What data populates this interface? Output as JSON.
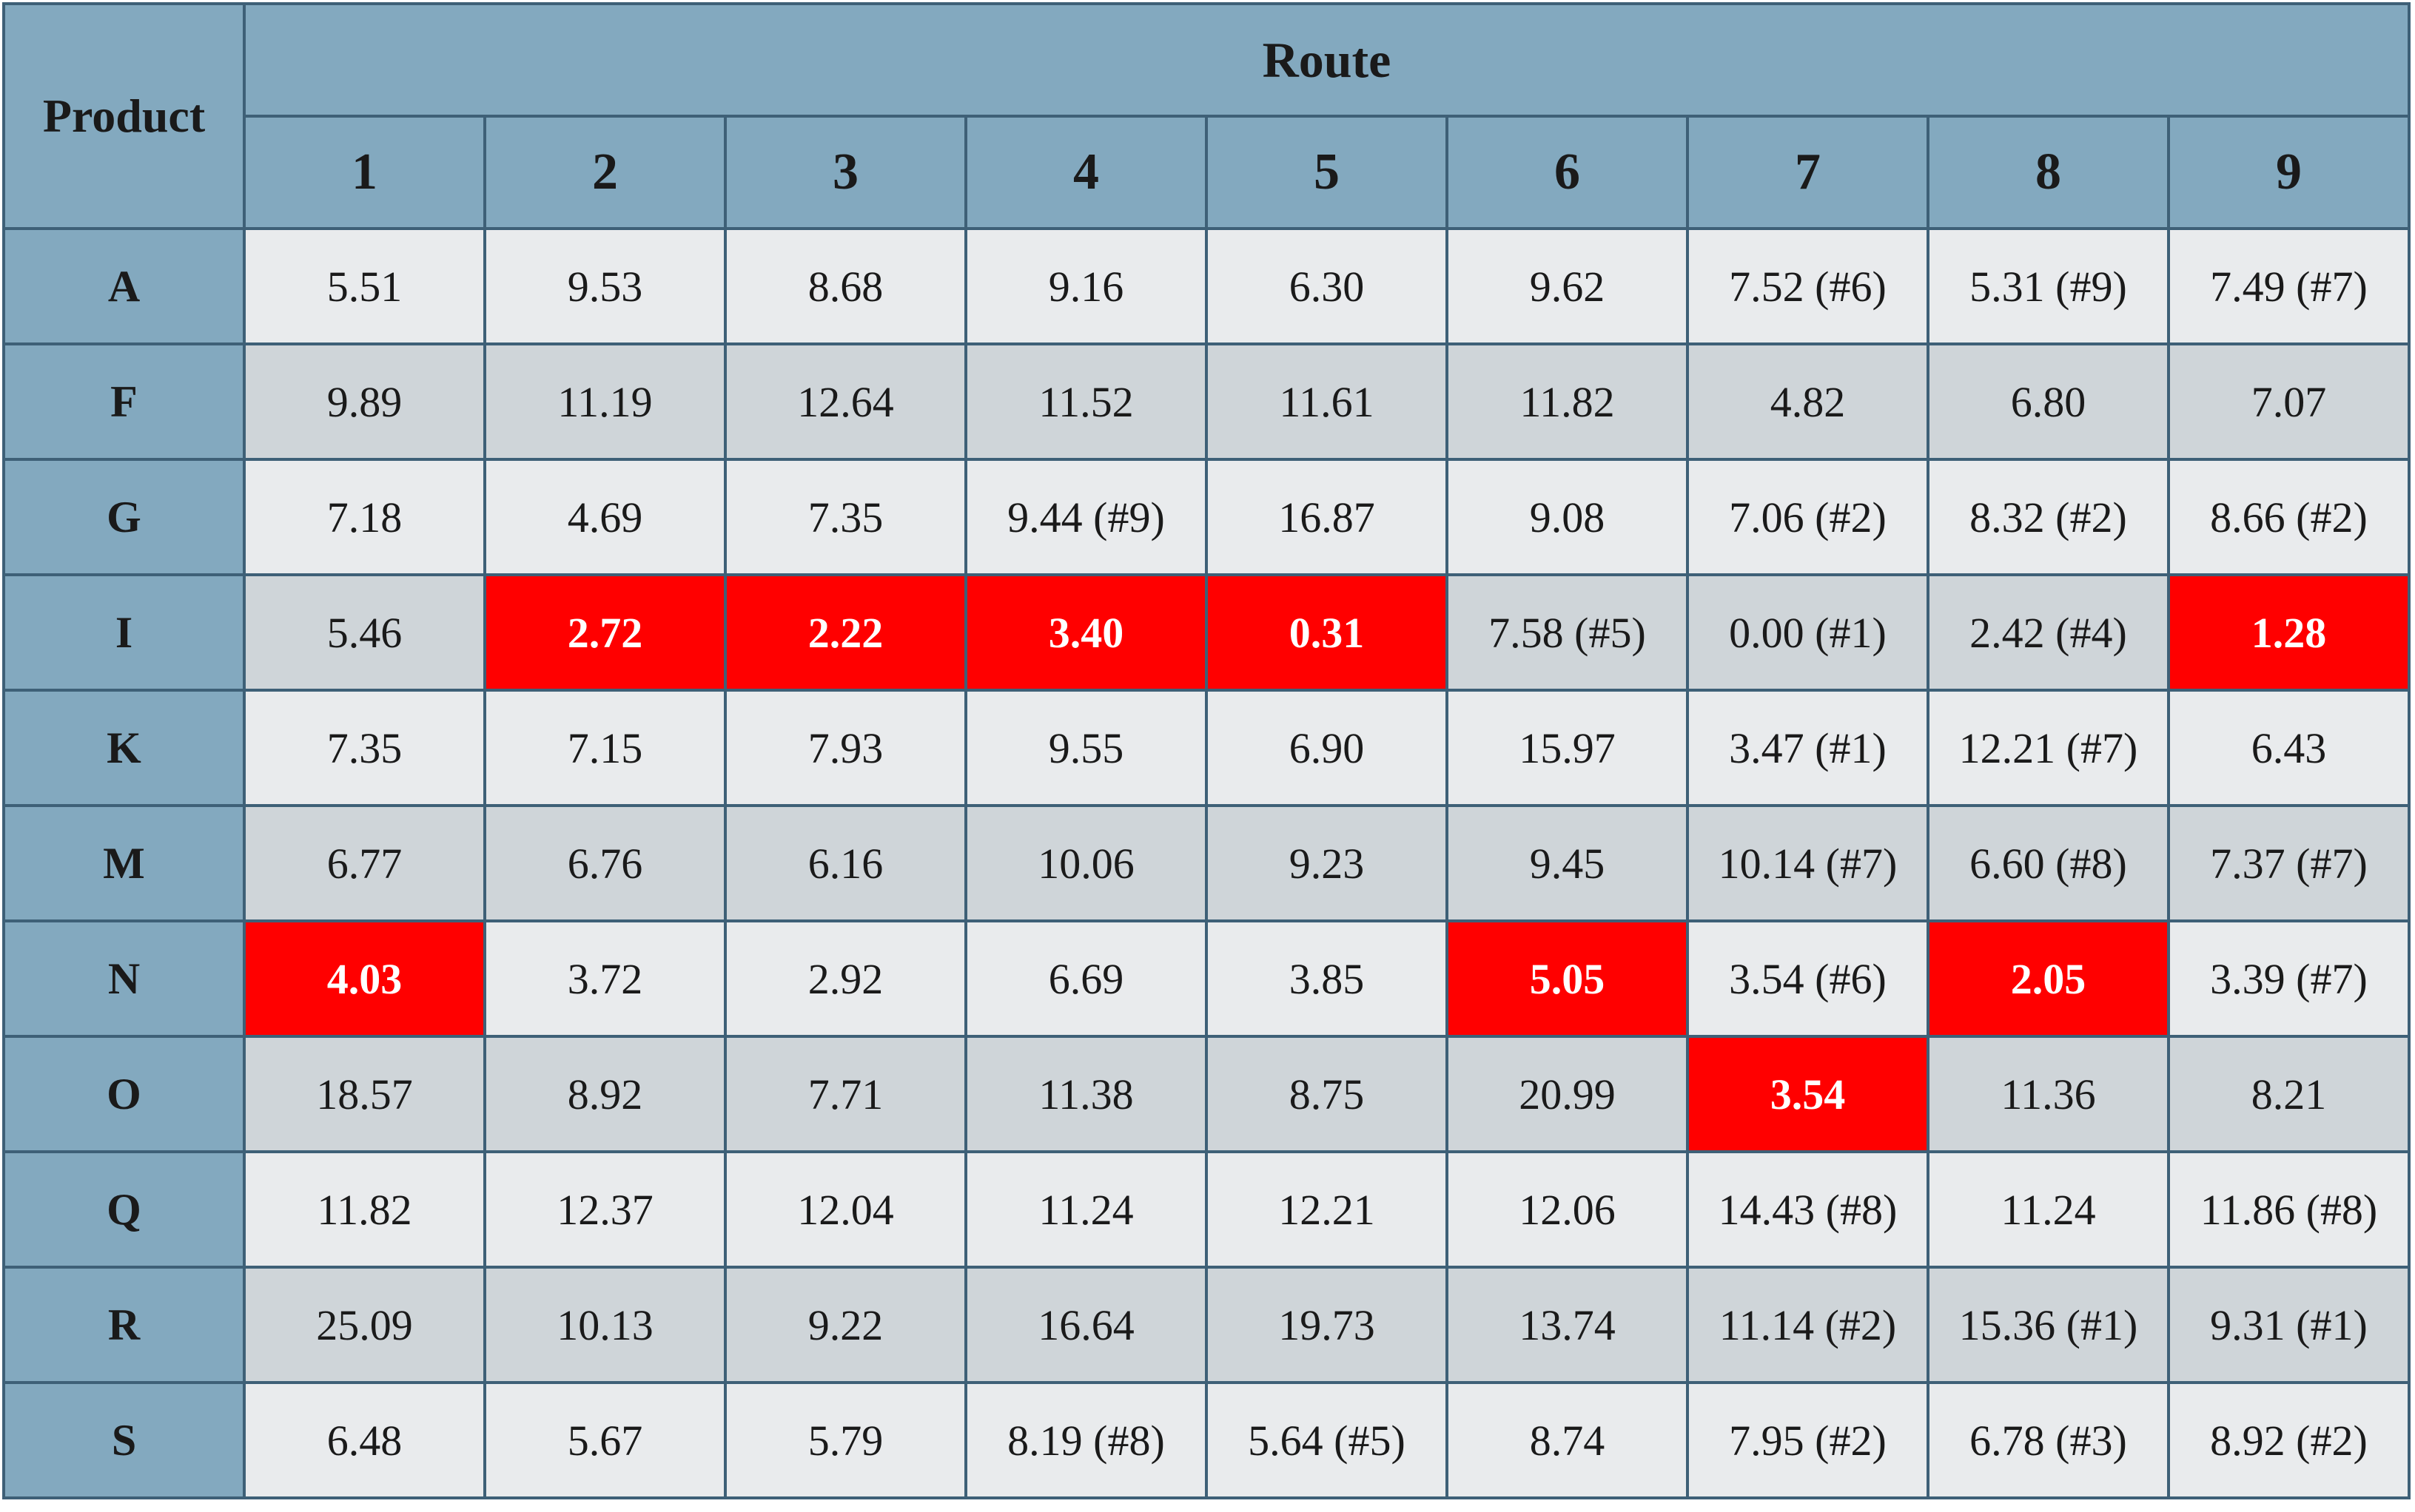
{
  "table": {
    "product_header": "Product",
    "route_header": "Route",
    "routes": [
      "1",
      "2",
      "3",
      "4",
      "5",
      "6",
      "7",
      "8",
      "9"
    ],
    "highlight_color": "#ff0000",
    "header_color": "#83a9bf",
    "rows": [
      {
        "product": "A",
        "cells": [
          {
            "text": "5.51"
          },
          {
            "text": "9.53"
          },
          {
            "text": "8.68"
          },
          {
            "text": "9.16"
          },
          {
            "text": "6.30"
          },
          {
            "text": "9.62"
          },
          {
            "text": "7.52 (#6)"
          },
          {
            "text": "5.31 (#9)"
          },
          {
            "text": "7.49 (#7)"
          }
        ]
      },
      {
        "product": "F",
        "cells": [
          {
            "text": "9.89"
          },
          {
            "text": "11.19"
          },
          {
            "text": "12.64"
          },
          {
            "text": "11.52"
          },
          {
            "text": "11.61"
          },
          {
            "text": "11.82"
          },
          {
            "text": "4.82"
          },
          {
            "text": "6.80"
          },
          {
            "text": "7.07"
          }
        ]
      },
      {
        "product": "G",
        "cells": [
          {
            "text": "7.18"
          },
          {
            "text": "4.69"
          },
          {
            "text": "7.35"
          },
          {
            "text": "9.44 (#9)"
          },
          {
            "text": "16.87"
          },
          {
            "text": "9.08"
          },
          {
            "text": "7.06 (#2)"
          },
          {
            "text": "8.32 (#2)"
          },
          {
            "text": "8.66 (#2)"
          }
        ]
      },
      {
        "product": "I",
        "cells": [
          {
            "text": "5.46"
          },
          {
            "text": "2.72",
            "highlight": true
          },
          {
            "text": "2.22",
            "highlight": true
          },
          {
            "text": "3.40",
            "highlight": true
          },
          {
            "text": "0.31",
            "highlight": true
          },
          {
            "text": "7.58 (#5)"
          },
          {
            "text": "0.00 (#1)"
          },
          {
            "text": "2.42 (#4)"
          },
          {
            "text": "1.28",
            "highlight": true
          }
        ]
      },
      {
        "product": "K",
        "cells": [
          {
            "text": "7.35"
          },
          {
            "text": "7.15"
          },
          {
            "text": "7.93"
          },
          {
            "text": "9.55"
          },
          {
            "text": "6.90"
          },
          {
            "text": "15.97"
          },
          {
            "text": "3.47 (#1)"
          },
          {
            "text": "12.21 (#7)"
          },
          {
            "text": "6.43"
          }
        ]
      },
      {
        "product": "M",
        "cells": [
          {
            "text": "6.77"
          },
          {
            "text": "6.76"
          },
          {
            "text": "6.16"
          },
          {
            "text": "10.06"
          },
          {
            "text": "9.23"
          },
          {
            "text": "9.45"
          },
          {
            "text": "10.14 (#7)"
          },
          {
            "text": "6.60 (#8)"
          },
          {
            "text": "7.37 (#7)"
          }
        ]
      },
      {
        "product": "N",
        "cells": [
          {
            "text": "4.03",
            "highlight": true
          },
          {
            "text": "3.72"
          },
          {
            "text": "2.92"
          },
          {
            "text": "6.69"
          },
          {
            "text": "3.85"
          },
          {
            "text": "5.05",
            "highlight": true
          },
          {
            "text": "3.54 (#6)"
          },
          {
            "text": "2.05",
            "highlight": true
          },
          {
            "text": "3.39 (#7)"
          }
        ]
      },
      {
        "product": "O",
        "cells": [
          {
            "text": "18.57"
          },
          {
            "text": "8.92"
          },
          {
            "text": "7.71"
          },
          {
            "text": "11.38"
          },
          {
            "text": "8.75"
          },
          {
            "text": "20.99"
          },
          {
            "text": "3.54",
            "highlight": true
          },
          {
            "text": "11.36"
          },
          {
            "text": "8.21"
          }
        ]
      },
      {
        "product": "Q",
        "cells": [
          {
            "text": "11.82"
          },
          {
            "text": "12.37"
          },
          {
            "text": "12.04"
          },
          {
            "text": "11.24"
          },
          {
            "text": "12.21"
          },
          {
            "text": "12.06"
          },
          {
            "text": "14.43 (#8)"
          },
          {
            "text": "11.24"
          },
          {
            "text": "11.86 (#8)"
          }
        ]
      },
      {
        "product": "R",
        "cells": [
          {
            "text": "25.09"
          },
          {
            "text": "10.13"
          },
          {
            "text": "9.22"
          },
          {
            "text": "16.64"
          },
          {
            "text": "19.73"
          },
          {
            "text": "13.74"
          },
          {
            "text": "11.14 (#2)"
          },
          {
            "text": "15.36 (#1)"
          },
          {
            "text": "9.31 (#1)"
          }
        ]
      },
      {
        "product": "S",
        "cells": [
          {
            "text": "6.48"
          },
          {
            "text": "5.67"
          },
          {
            "text": "5.79"
          },
          {
            "text": "8.19 (#8)"
          },
          {
            "text": "5.64 (#5)"
          },
          {
            "text": "8.74"
          },
          {
            "text": "7.95 (#2)"
          },
          {
            "text": "6.78 (#3)"
          },
          {
            "text": "8.92 (#2)"
          }
        ]
      }
    ]
  }
}
